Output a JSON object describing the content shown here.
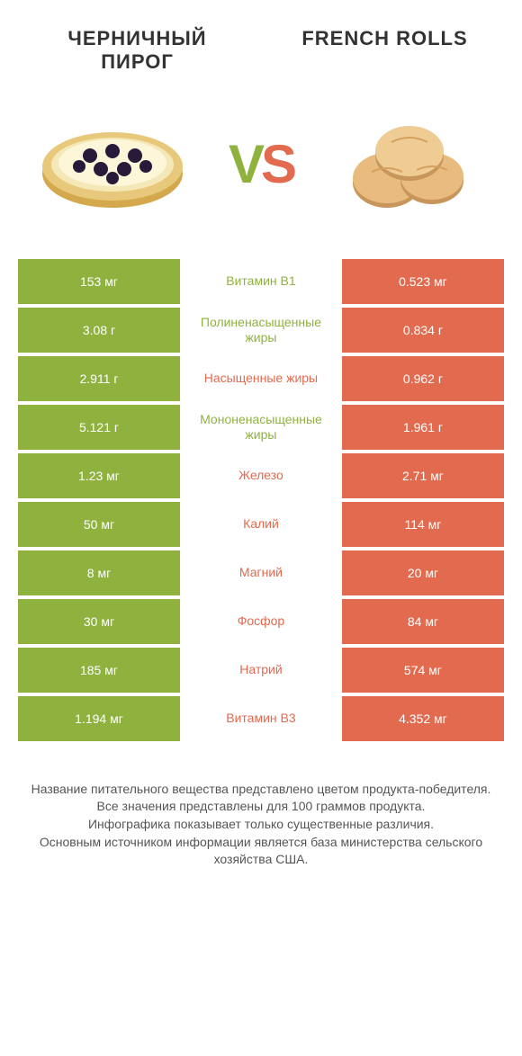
{
  "colors": {
    "green": "#8fb23f",
    "orange": "#e26a4f",
    "grey_bg": "#e8e8e8",
    "text": "#333333",
    "footer_text": "#555555",
    "white": "#ffffff"
  },
  "titles": {
    "left": "ЧЕРНИЧНЫЙ ПИРОГ",
    "right": "FRENCH ROLLS"
  },
  "vs_label": {
    "v": "V",
    "s": "S"
  },
  "rows": [
    {
      "left": "153 мг",
      "mid": "Витамин B1",
      "right": "0.523 мг",
      "winner": "left"
    },
    {
      "left": "3.08 г",
      "mid": "Полиненасыщенные жиры",
      "right": "0.834 г",
      "winner": "left"
    },
    {
      "left": "2.911 г",
      "mid": "Насыщенные жиры",
      "right": "0.962 г",
      "winner": "right"
    },
    {
      "left": "5.121 г",
      "mid": "Мононенасыщенные жиры",
      "right": "1.961 г",
      "winner": "left"
    },
    {
      "left": "1.23 мг",
      "mid": "Железо",
      "right": "2.71 мг",
      "winner": "right"
    },
    {
      "left": "50 мг",
      "mid": "Калий",
      "right": "114 мг",
      "winner": "right"
    },
    {
      "left": "8 мг",
      "mid": "Магний",
      "right": "20 мг",
      "winner": "right"
    },
    {
      "left": "30 мг",
      "mid": "Фосфор",
      "right": "84 мг",
      "winner": "right"
    },
    {
      "left": "185 мг",
      "mid": "Натрий",
      "right": "574 мг",
      "winner": "right"
    },
    {
      "left": "1.194 мг",
      "mid": "Витамин B3",
      "right": "4.352 мг",
      "winner": "right"
    }
  ],
  "footer_lines": [
    "Название питательного вещества представлено цветом продукта-победителя.",
    "Все значения представлены для 100 граммов продукта.",
    "Инфографика показывает только существенные различия.",
    "Основным источником информации является база министерства сельского хозяйства США."
  ]
}
